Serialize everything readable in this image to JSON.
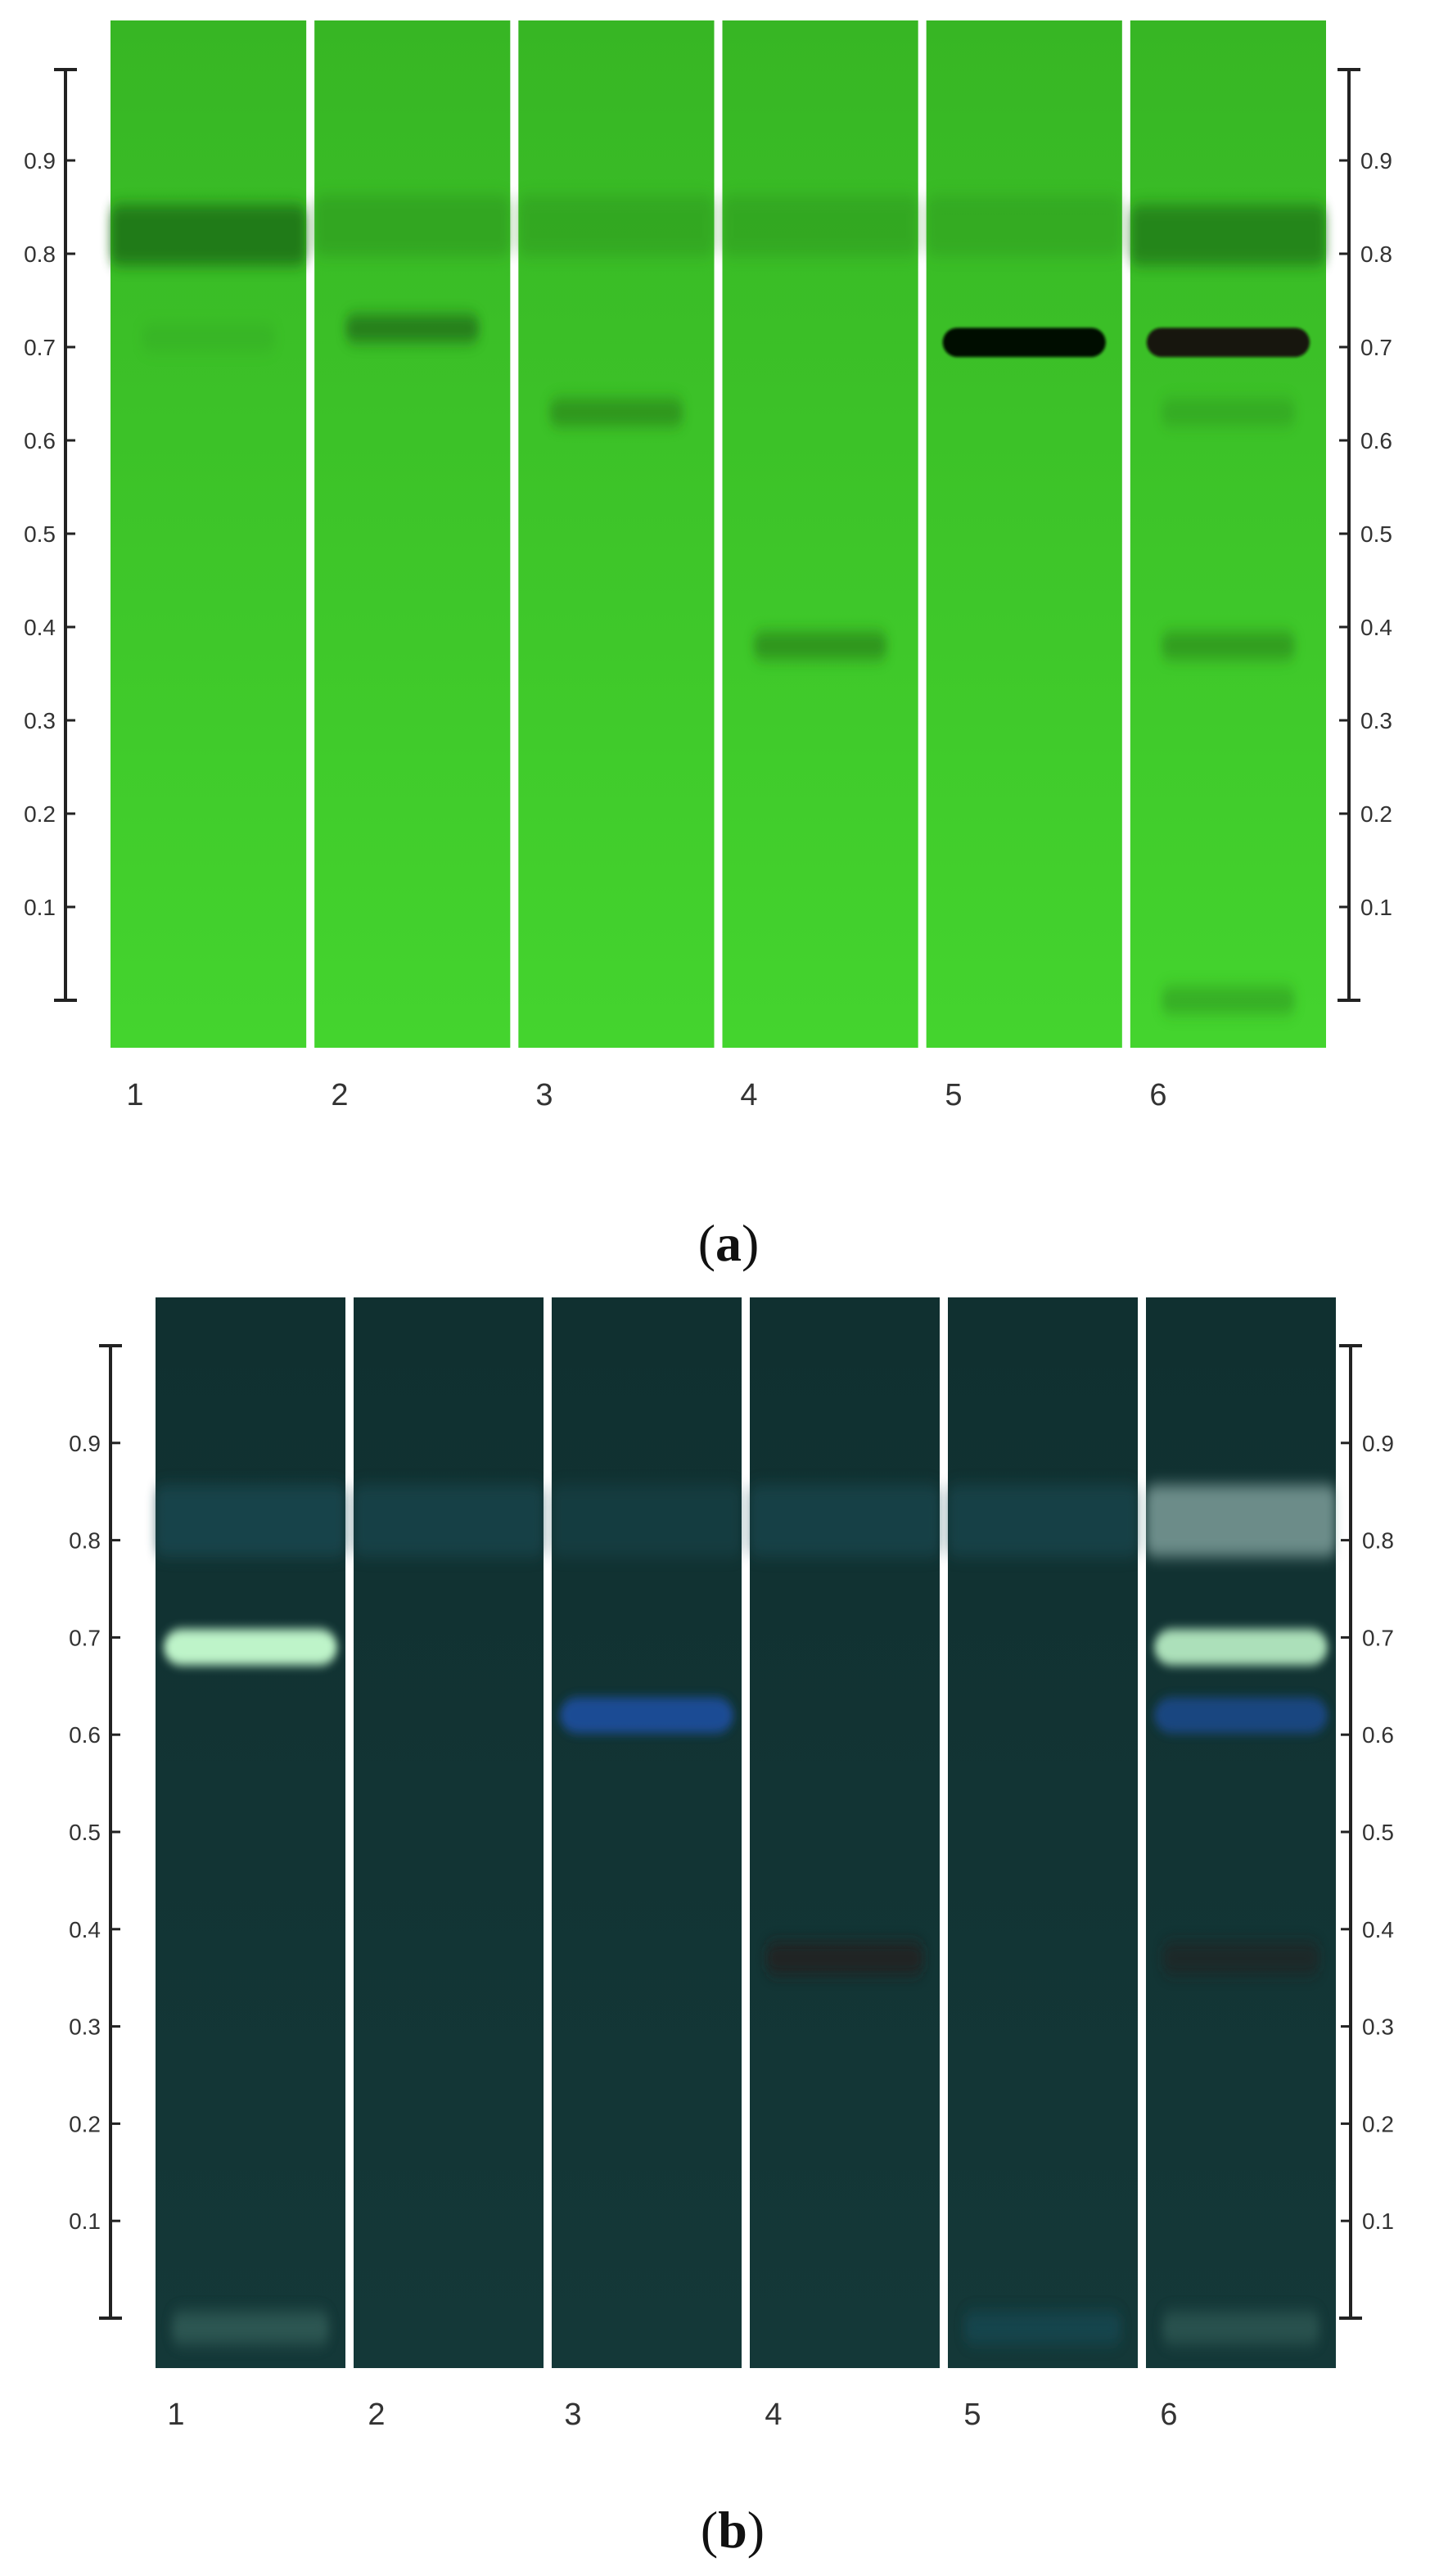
{
  "figure": {
    "panels": [
      {
        "id": "a",
        "caption_open": "(",
        "caption_letter": "a",
        "caption_close": ")",
        "background_color": "#44d42e",
        "background_color_dark": "#37b624",
        "scale_ticks": [
          "0.1",
          "0.2",
          "0.3",
          "0.4",
          "0.5",
          "0.6",
          "0.7",
          "0.8",
          "0.9"
        ],
        "lanes": [
          {
            "label": "1",
            "bands": [
              {
                "rf": 0.82,
                "color": "#1d6f12",
                "strength": 0.85,
                "kind": "soft"
              },
              {
                "rf": 0.71,
                "color": "#2f9a20",
                "strength": 0.25,
                "kind": "soft"
              }
            ]
          },
          {
            "label": "2",
            "bands": [
              {
                "rf": 0.83,
                "color": "#2a8c1a",
                "strength": 0.45,
                "kind": "soft"
              },
              {
                "rf": 0.72,
                "color": "#1d6414",
                "strength": 0.7,
                "kind": "soft"
              }
            ]
          },
          {
            "label": "3",
            "bands": [
              {
                "rf": 0.83,
                "color": "#2a8c1a",
                "strength": 0.4,
                "kind": "soft"
              },
              {
                "rf": 0.63,
                "color": "#267a18",
                "strength": 0.6,
                "kind": "soft"
              }
            ]
          },
          {
            "label": "4",
            "bands": [
              {
                "rf": 0.83,
                "color": "#2a8c1a",
                "strength": 0.4,
                "kind": "soft"
              },
              {
                "rf": 0.38,
                "color": "#267a18",
                "strength": 0.65,
                "kind": "soft"
              }
            ]
          },
          {
            "label": "5",
            "bands": [
              {
                "rf": 0.83,
                "color": "#2a8c1a",
                "strength": 0.35,
                "kind": "soft"
              },
              {
                "rf": 0.705,
                "color": "#050805",
                "strength": 1.0,
                "kind": "solid"
              }
            ]
          },
          {
            "label": "6",
            "bands": [
              {
                "rf": 0.82,
                "color": "#1d6f12",
                "strength": 0.7,
                "kind": "soft"
              },
              {
                "rf": 0.705,
                "color": "#120f08",
                "strength": 0.95,
                "kind": "solid"
              },
              {
                "rf": 0.63,
                "color": "#2a8c1a",
                "strength": 0.4,
                "kind": "soft"
              },
              {
                "rf": 0.38,
                "color": "#267a18",
                "strength": 0.55,
                "kind": "soft"
              },
              {
                "rf": 0.0,
                "color": "#2a8c1a",
                "strength": 0.5,
                "kind": "soft"
              }
            ]
          }
        ]
      },
      {
        "id": "b",
        "caption_open": "(",
        "caption_letter": "b",
        "caption_close": ")",
        "background_color": "#143838",
        "background_color_dark": "#103030",
        "scale_ticks": [
          "0.1",
          "0.2",
          "0.3",
          "0.4",
          "0.5",
          "0.6",
          "0.7",
          "0.8",
          "0.9"
        ],
        "lanes": [
          {
            "label": "1",
            "bands": [
              {
                "rf": 0.82,
                "color": "#1c4f5a",
                "strength": 0.6,
                "kind": "soft"
              },
              {
                "rf": 0.69,
                "color": "#c8ffd2",
                "strength": 0.95,
                "kind": "glow"
              },
              {
                "rf": -0.01,
                "color": "#3e6a63",
                "strength": 0.6,
                "kind": "soft"
              }
            ]
          },
          {
            "label": "2",
            "bands": [
              {
                "rf": 0.82,
                "color": "#1c4f5a",
                "strength": 0.5,
                "kind": "soft"
              }
            ]
          },
          {
            "label": "3",
            "bands": [
              {
                "rf": 0.82,
                "color": "#1c4f5a",
                "strength": 0.35,
                "kind": "soft"
              },
              {
                "rf": 0.62,
                "color": "#1f4e9a",
                "strength": 0.95,
                "kind": "glow"
              }
            ]
          },
          {
            "label": "4",
            "bands": [
              {
                "rf": 0.82,
                "color": "#1c4f5a",
                "strength": 0.5,
                "kind": "soft"
              },
              {
                "rf": 0.37,
                "color": "#251c1e",
                "strength": 0.7,
                "kind": "soft"
              }
            ]
          },
          {
            "label": "5",
            "bands": [
              {
                "rf": 0.82,
                "color": "#1c4f5a",
                "strength": 0.5,
                "kind": "soft"
              },
              {
                "rf": -0.01,
                "color": "#174d5a",
                "strength": 0.6,
                "kind": "soft"
              }
            ]
          },
          {
            "label": "6",
            "bands": [
              {
                "rf": 0.82,
                "color": "#a9c9c4",
                "strength": 0.6,
                "kind": "soft"
              },
              {
                "rf": 0.69,
                "color": "#c8ffd2",
                "strength": 0.85,
                "kind": "glow"
              },
              {
                "rf": 0.62,
                "color": "#1f4e9a",
                "strength": 0.75,
                "kind": "glow"
              },
              {
                "rf": 0.37,
                "color": "#251c1e",
                "strength": 0.5,
                "kind": "soft"
              },
              {
                "rf": -0.01,
                "color": "#3e6a63",
                "strength": 0.5,
                "kind": "soft"
              }
            ]
          }
        ]
      }
    ]
  }
}
